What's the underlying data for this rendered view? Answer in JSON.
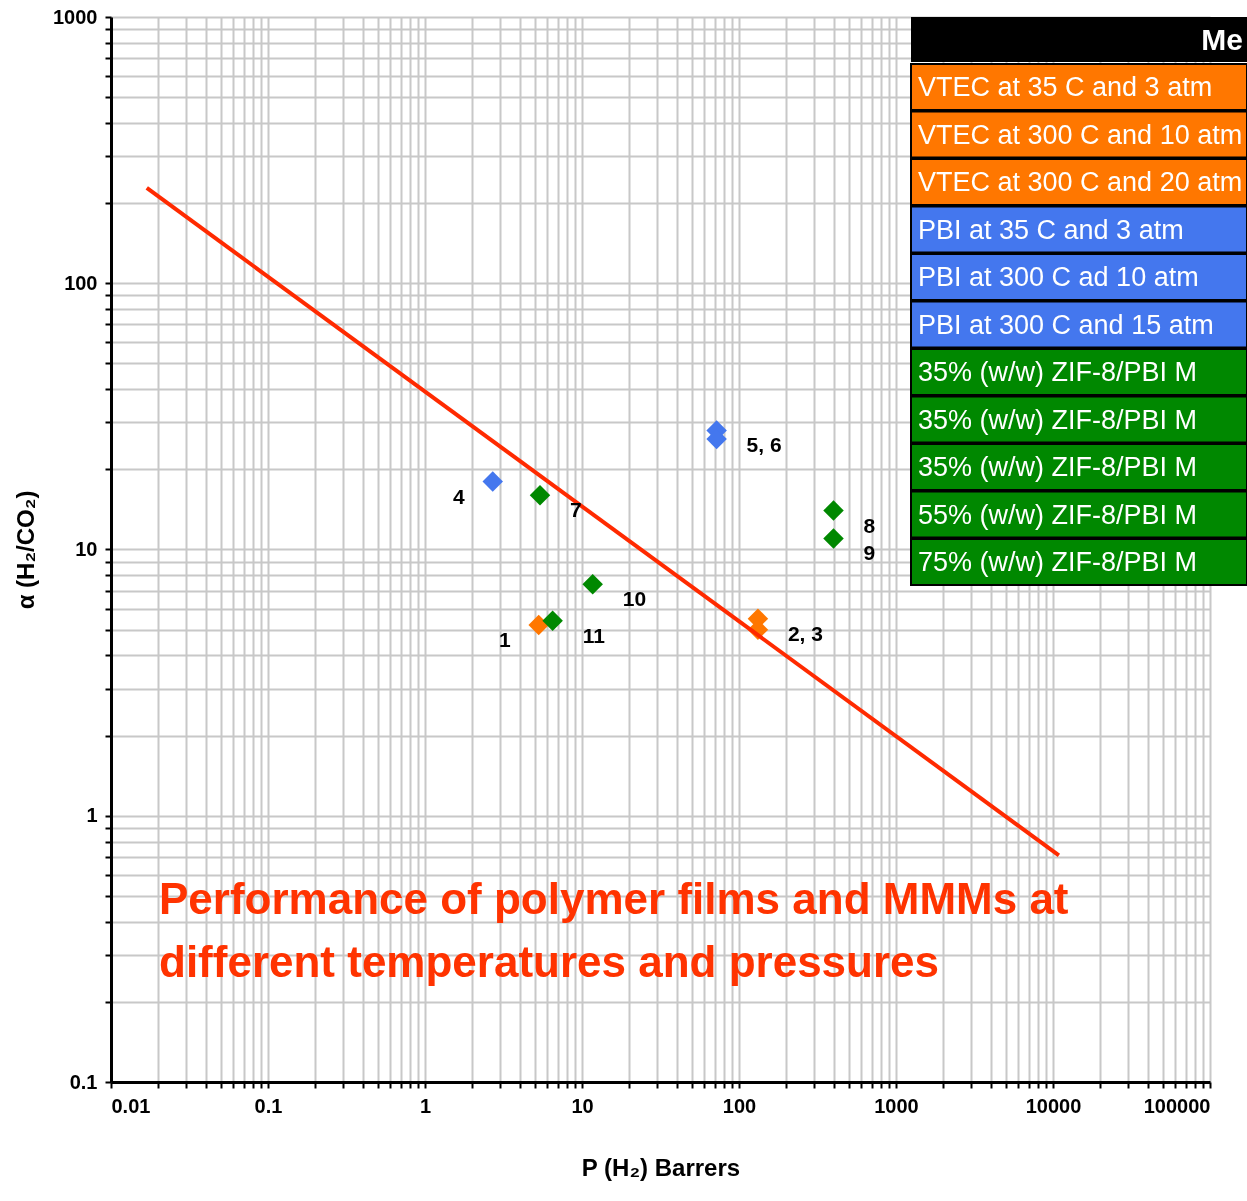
{
  "chart_data": {
    "type": "scatter",
    "title": "Performance of polymer films and MMMs at different temperatures and pressures",
    "xlabel": "P (H₂) Barrers",
    "ylabel": "α (H₂/CO₂)",
    "legend_title": "Me",
    "log": "xy",
    "grid": true,
    "legend": "top right",
    "marker": "diamond",
    "xlim": [
      0.01,
      100000
    ],
    "ylim": [
      0.1,
      1000
    ],
    "xticks": [
      0.01,
      0.1,
      1,
      10,
      100,
      1000,
      10000,
      100000
    ],
    "yticks": [
      0.1,
      1,
      10,
      100,
      1000
    ],
    "series": [
      {
        "name": "VTEC at 35 C and 3 atm",
        "color": "#ff7700",
        "x": [
          5.3
        ],
        "values": [
          5.2
        ]
      },
      {
        "name": "VTEC at 300 C and 10 atm",
        "color": "#ff7700",
        "x": [
          132
        ],
        "values": [
          5.5
        ]
      },
      {
        "name": "VTEC at 300 C and 20 atm",
        "color": "#ff7700",
        "x": [
          132
        ],
        "values": [
          5.0
        ]
      },
      {
        "name": "PBI at 35 C and 3 atm",
        "color": "#4477ee",
        "x": [
          2.7
        ],
        "values": [
          18
        ]
      },
      {
        "name": "PBI at 300 C ad 10 atm",
        "color": "#4477ee",
        "x": [
          72
        ],
        "values": [
          28
        ]
      },
      {
        "name": "PBI at 300 C and 15 atm",
        "color": "#4477ee",
        "x": [
          72
        ],
        "values": [
          26
        ]
      },
      {
        "name": "35% (w/w) ZIF-8/PBI M",
        "color": "#008800",
        "x": [
          5.4
        ],
        "values": [
          16
        ]
      },
      {
        "name": "35% (w/w) ZIF-8/PBI M",
        "color": "#008800",
        "x": [
          400
        ],
        "values": [
          14
        ]
      },
      {
        "name": "35% (w/w) ZIF-8/PBI M",
        "color": "#008800",
        "x": [
          400
        ],
        "values": [
          11
        ]
      },
      {
        "name": "55% (w/w) ZIF-8/PBI M",
        "color": "#008800",
        "x": [
          11.7
        ],
        "values": [
          7.4
        ]
      },
      {
        "name": "75% (w/w) ZIF-8/PBI M",
        "color": "#008800",
        "x": [
          6.5
        ],
        "values": [
          5.4
        ]
      },
      {
        "type": "line",
        "marker": "none",
        "color": "#ff2a00",
        "x": [
          0.0169,
          10900
        ],
        "values": [
          228,
          0.71
        ]
      }
    ],
    "annotations": [
      {
        "text": "1",
        "x": 5.3,
        "y": 5.2
      },
      {
        "text": "2, 3",
        "x": 132,
        "y": 5.5
      },
      {
        "text": "4",
        "x": 2.7,
        "y": 18
      },
      {
        "text": "5, 6",
        "x": 72,
        "y": 28
      },
      {
        "text": "7",
        "x": 5.4,
        "y": 16
      },
      {
        "text": "8",
        "x": 400,
        "y": 14
      },
      {
        "text": "9",
        "x": 400,
        "y": 11
      },
      {
        "text": "10",
        "x": 11.7,
        "y": 7.4
      },
      {
        "text": "11",
        "x": 6.5,
        "y": 5.4
      }
    ]
  }
}
